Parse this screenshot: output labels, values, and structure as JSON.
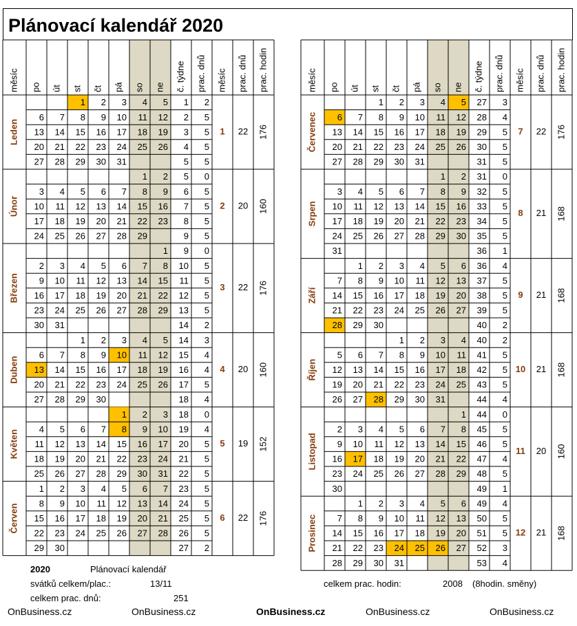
{
  "title": "Plánovací kalendář 2020",
  "header": {
    "month": "měsíc",
    "days": [
      "po",
      "út",
      "st",
      "čt",
      "pá",
      "so",
      "ne"
    ],
    "week": "č. týdne",
    "workdays": "prac. dnů",
    "hours": "prac. hodin"
  },
  "colors": {
    "holiday": "#FFC000",
    "weekend": "#DDD9C4",
    "month_name": "#843C0C"
  },
  "months": [
    {
      "name": "Leden",
      "num": "1",
      "workdays": "22",
      "hours": "176",
      "rows": [
        {
          "days": [
            "",
            "",
            "1",
            "2",
            "3",
            "4",
            "5"
          ],
          "week": "1",
          "wd": "2",
          "hol": [
            2
          ]
        },
        {
          "days": [
            "6",
            "7",
            "8",
            "9",
            "10",
            "11",
            "12"
          ],
          "week": "2",
          "wd": "5"
        },
        {
          "days": [
            "13",
            "14",
            "15",
            "16",
            "17",
            "18",
            "19"
          ],
          "week": "3",
          "wd": "5"
        },
        {
          "days": [
            "20",
            "21",
            "22",
            "23",
            "24",
            "25",
            "26"
          ],
          "week": "4",
          "wd": "5"
        },
        {
          "days": [
            "27",
            "28",
            "29",
            "30",
            "31",
            "",
            ""
          ],
          "week": "5",
          "wd": "5"
        }
      ]
    },
    {
      "name": "Únor",
      "num": "2",
      "workdays": "20",
      "hours": "160",
      "rows": [
        {
          "days": [
            "",
            "",
            "",
            "",
            "",
            "1",
            "2"
          ],
          "week": "5",
          "wd": "0"
        },
        {
          "days": [
            "3",
            "4",
            "5",
            "6",
            "7",
            "8",
            "9"
          ],
          "week": "6",
          "wd": "5"
        },
        {
          "days": [
            "10",
            "11",
            "12",
            "13",
            "14",
            "15",
            "16"
          ],
          "week": "7",
          "wd": "5"
        },
        {
          "days": [
            "17",
            "18",
            "19",
            "20",
            "21",
            "22",
            "23"
          ],
          "week": "8",
          "wd": "5"
        },
        {
          "days": [
            "24",
            "25",
            "26",
            "27",
            "28",
            "29",
            ""
          ],
          "week": "9",
          "wd": "5"
        }
      ]
    },
    {
      "name": "Březen",
      "num": "3",
      "workdays": "22",
      "hours": "176",
      "rows": [
        {
          "days": [
            "",
            "",
            "",
            "",
            "",
            "",
            "1"
          ],
          "week": "9",
          "wd": "0"
        },
        {
          "days": [
            "2",
            "3",
            "4",
            "5",
            "6",
            "7",
            "8"
          ],
          "week": "10",
          "wd": "5"
        },
        {
          "days": [
            "9",
            "10",
            "11",
            "12",
            "13",
            "14",
            "15"
          ],
          "week": "11",
          "wd": "5"
        },
        {
          "days": [
            "16",
            "17",
            "18",
            "19",
            "20",
            "21",
            "22"
          ],
          "week": "12",
          "wd": "5"
        },
        {
          "days": [
            "23",
            "24",
            "25",
            "26",
            "27",
            "28",
            "29"
          ],
          "week": "13",
          "wd": "5"
        },
        {
          "days": [
            "30",
            "31",
            "",
            "",
            "",
            "",
            ""
          ],
          "week": "14",
          "wd": "2"
        }
      ]
    },
    {
      "name": "Duben",
      "num": "4",
      "workdays": "20",
      "hours": "160",
      "rows": [
        {
          "days": [
            "",
            "",
            "1",
            "2",
            "3",
            "4",
            "5"
          ],
          "week": "14",
          "wd": "3"
        },
        {
          "days": [
            "6",
            "7",
            "8",
            "9",
            "10",
            "11",
            "12"
          ],
          "week": "15",
          "wd": "4",
          "hol": [
            4
          ]
        },
        {
          "days": [
            "13",
            "14",
            "15",
            "16",
            "17",
            "18",
            "19"
          ],
          "week": "16",
          "wd": "4",
          "hol": [
            0
          ]
        },
        {
          "days": [
            "20",
            "21",
            "22",
            "23",
            "24",
            "25",
            "26"
          ],
          "week": "17",
          "wd": "5"
        },
        {
          "days": [
            "27",
            "28",
            "29",
            "30",
            "",
            "",
            ""
          ],
          "week": "18",
          "wd": "4"
        }
      ]
    },
    {
      "name": "Květen",
      "num": "5",
      "workdays": "19",
      "hours": "152",
      "rows": [
        {
          "days": [
            "",
            "",
            "",
            "",
            "1",
            "2",
            "3"
          ],
          "week": "18",
          "wd": "0",
          "hol": [
            4
          ]
        },
        {
          "days": [
            "4",
            "5",
            "6",
            "7",
            "8",
            "9",
            "10"
          ],
          "week": "19",
          "wd": "4",
          "hol": [
            4
          ]
        },
        {
          "days": [
            "11",
            "12",
            "13",
            "14",
            "15",
            "16",
            "17"
          ],
          "week": "20",
          "wd": "5"
        },
        {
          "days": [
            "18",
            "19",
            "20",
            "21",
            "22",
            "23",
            "24"
          ],
          "week": "21",
          "wd": "5"
        },
        {
          "days": [
            "25",
            "26",
            "27",
            "28",
            "29",
            "30",
            "31"
          ],
          "week": "22",
          "wd": "5"
        }
      ]
    },
    {
      "name": "Červen",
      "num": "6",
      "workdays": "22",
      "hours": "176",
      "rows": [
        {
          "days": [
            "1",
            "2",
            "3",
            "4",
            "5",
            "6",
            "7"
          ],
          "week": "23",
          "wd": "5"
        },
        {
          "days": [
            "8",
            "9",
            "10",
            "11",
            "12",
            "13",
            "14"
          ],
          "week": "24",
          "wd": "5"
        },
        {
          "days": [
            "15",
            "16",
            "17",
            "18",
            "19",
            "20",
            "21"
          ],
          "week": "25",
          "wd": "5"
        },
        {
          "days": [
            "22",
            "23",
            "24",
            "25",
            "26",
            "27",
            "28"
          ],
          "week": "26",
          "wd": "5"
        },
        {
          "days": [
            "29",
            "30",
            "",
            "",
            "",
            "",
            ""
          ],
          "week": "27",
          "wd": "2"
        }
      ]
    },
    {
      "name": "Červenec",
      "num": "7",
      "workdays": "22",
      "hours": "176",
      "rows": [
        {
          "days": [
            "",
            "",
            "1",
            "2",
            "3",
            "4",
            "5"
          ],
          "week": "27",
          "wd": "3",
          "hol": [
            6
          ]
        },
        {
          "days": [
            "6",
            "7",
            "8",
            "9",
            "10",
            "11",
            "12"
          ],
          "week": "28",
          "wd": "4",
          "hol": [
            0
          ]
        },
        {
          "days": [
            "13",
            "14",
            "15",
            "16",
            "17",
            "18",
            "19"
          ],
          "week": "29",
          "wd": "5"
        },
        {
          "days": [
            "20",
            "21",
            "22",
            "23",
            "24",
            "25",
            "26"
          ],
          "week": "30",
          "wd": "5"
        },
        {
          "days": [
            "27",
            "28",
            "29",
            "30",
            "31",
            "",
            ""
          ],
          "week": "31",
          "wd": "5"
        }
      ]
    },
    {
      "name": "Srpen",
      "num": "8",
      "workdays": "21",
      "hours": "168",
      "rows": [
        {
          "days": [
            "",
            "",
            "",
            "",
            "",
            "1",
            "2"
          ],
          "week": "31",
          "wd": "0"
        },
        {
          "days": [
            "3",
            "4",
            "5",
            "6",
            "7",
            "8",
            "9"
          ],
          "week": "32",
          "wd": "5"
        },
        {
          "days": [
            "10",
            "11",
            "12",
            "13",
            "14",
            "15",
            "16"
          ],
          "week": "33",
          "wd": "5"
        },
        {
          "days": [
            "17",
            "18",
            "19",
            "20",
            "21",
            "22",
            "23"
          ],
          "week": "34",
          "wd": "5"
        },
        {
          "days": [
            "24",
            "25",
            "26",
            "27",
            "28",
            "29",
            "30"
          ],
          "week": "35",
          "wd": "5"
        },
        {
          "days": [
            "31",
            "",
            "",
            "",
            "",
            "",
            ""
          ],
          "week": "36",
          "wd": "1"
        }
      ]
    },
    {
      "name": "Září",
      "num": "9",
      "workdays": "21",
      "hours": "168",
      "rows": [
        {
          "days": [
            "",
            "1",
            "2",
            "3",
            "4",
            "5",
            "6"
          ],
          "week": "36",
          "wd": "4"
        },
        {
          "days": [
            "7",
            "8",
            "9",
            "10",
            "11",
            "12",
            "13"
          ],
          "week": "37",
          "wd": "5"
        },
        {
          "days": [
            "14",
            "15",
            "16",
            "17",
            "18",
            "19",
            "20"
          ],
          "week": "38",
          "wd": "5"
        },
        {
          "days": [
            "21",
            "22",
            "23",
            "24",
            "25",
            "26",
            "27"
          ],
          "week": "39",
          "wd": "5"
        },
        {
          "days": [
            "28",
            "29",
            "30",
            "",
            "",
            "",
            ""
          ],
          "week": "40",
          "wd": "2",
          "hol": [
            0
          ]
        }
      ]
    },
    {
      "name": "Říjen",
      "num": "10",
      "workdays": "21",
      "hours": "168",
      "rows": [
        {
          "days": [
            "",
            "",
            "",
            "1",
            "2",
            "3",
            "4"
          ],
          "week": "40",
          "wd": "2"
        },
        {
          "days": [
            "5",
            "6",
            "7",
            "8",
            "9",
            "10",
            "11"
          ],
          "week": "41",
          "wd": "5"
        },
        {
          "days": [
            "12",
            "13",
            "14",
            "15",
            "16",
            "17",
            "18"
          ],
          "week": "42",
          "wd": "5"
        },
        {
          "days": [
            "19",
            "20",
            "21",
            "22",
            "23",
            "24",
            "25"
          ],
          "week": "43",
          "wd": "5"
        },
        {
          "days": [
            "26",
            "27",
            "28",
            "29",
            "30",
            "31",
            ""
          ],
          "week": "44",
          "wd": "4",
          "hol": [
            2
          ]
        }
      ]
    },
    {
      "name": "Listopad",
      "num": "11",
      "workdays": "20",
      "hours": "160",
      "rows": [
        {
          "days": [
            "",
            "",
            "",
            "",
            "",
            "",
            "1"
          ],
          "week": "44",
          "wd": "0"
        },
        {
          "days": [
            "2",
            "3",
            "4",
            "5",
            "6",
            "7",
            "8"
          ],
          "week": "45",
          "wd": "5"
        },
        {
          "days": [
            "9",
            "10",
            "11",
            "12",
            "13",
            "14",
            "15"
          ],
          "week": "46",
          "wd": "5"
        },
        {
          "days": [
            "16",
            "17",
            "18",
            "19",
            "20",
            "21",
            "22"
          ],
          "week": "47",
          "wd": "4",
          "hol": [
            1
          ]
        },
        {
          "days": [
            "23",
            "24",
            "25",
            "26",
            "27",
            "28",
            "29"
          ],
          "week": "48",
          "wd": "5"
        },
        {
          "days": [
            "30",
            "",
            "",
            "",
            "",
            "",
            ""
          ],
          "week": "49",
          "wd": "1"
        }
      ]
    },
    {
      "name": "Prosinec",
      "num": "12",
      "workdays": "21",
      "hours": "168",
      "rows": [
        {
          "days": [
            "",
            "1",
            "2",
            "3",
            "4",
            "5",
            "6"
          ],
          "week": "49",
          "wd": "4"
        },
        {
          "days": [
            "7",
            "8",
            "9",
            "10",
            "11",
            "12",
            "13"
          ],
          "week": "50",
          "wd": "5"
        },
        {
          "days": [
            "14",
            "15",
            "16",
            "17",
            "18",
            "19",
            "20"
          ],
          "week": "51",
          "wd": "5"
        },
        {
          "days": [
            "21",
            "22",
            "23",
            "24",
            "25",
            "26",
            "27"
          ],
          "week": "52",
          "wd": "3",
          "hol": [
            3,
            4,
            5
          ]
        },
        {
          "days": [
            "28",
            "29",
            "30",
            "31",
            "",
            "",
            ""
          ],
          "week": "53",
          "wd": "4"
        }
      ]
    }
  ],
  "footer": {
    "year": "2020",
    "cal_name": "Plánovací kalendář",
    "holidays_label": "svátků celkem/plac.:",
    "holidays_value": "13/11",
    "total_days_label": "celkem prac. dnů:",
    "total_days_value": "251",
    "total_hours_label": "celkem prac. hodin:",
    "total_hours_value": "2008",
    "shift_note": "(8hodin. směny)",
    "brands": [
      "OnBusiness.cz",
      "OnBusiness.cz",
      "OnBusiness.cz",
      "OnBusiness.cz",
      "OnBusiness.cz"
    ]
  }
}
